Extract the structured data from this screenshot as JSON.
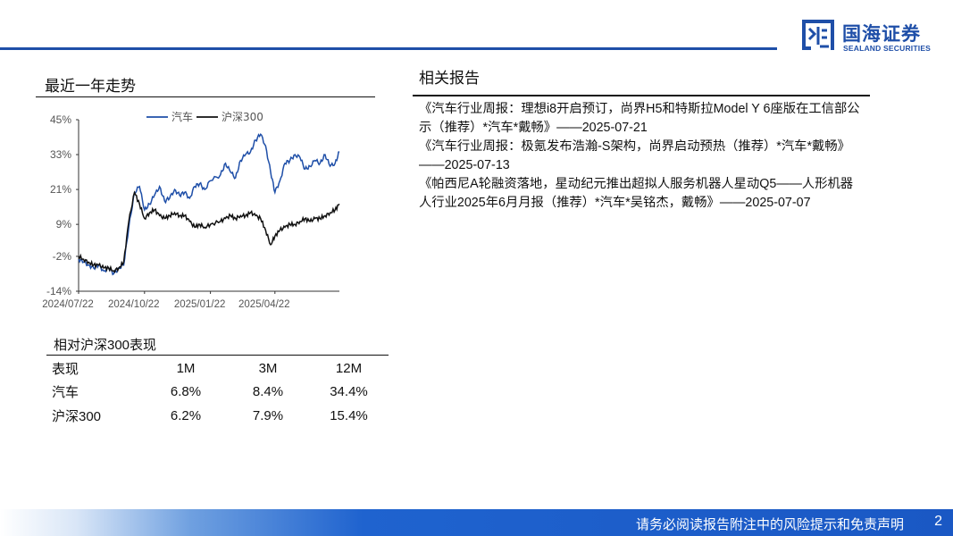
{
  "header": {
    "logo_cn": "国海证券",
    "logo_en": "SEALAND SECURITIES",
    "brand_color": "#1f4fa8",
    "logo_icon": "sealand-logo-icon"
  },
  "trend": {
    "title": "最近一年走势"
  },
  "chart_data": {
    "type": "line",
    "title": "",
    "xlabel": "",
    "ylabel": "",
    "ylim": [
      -14,
      45
    ],
    "yticks": [
      "45%",
      "33%",
      "21%",
      "9%",
      "-2%",
      "-14%"
    ],
    "ytick_values": [
      45,
      33,
      21,
      9,
      -2,
      -14
    ],
    "xticks": [
      "2024/07/22",
      "2024/10/22",
      "2025/01/22",
      "2025/04/22"
    ],
    "legend": [
      "汽车",
      "沪深300"
    ],
    "legend_position": "top",
    "grid": false,
    "series": [
      {
        "name": "汽车",
        "color": "#1f4fa8",
        "x": [
          "2024/07/22",
          "2024/07/29",
          "2024/08/05",
          "2024/08/12",
          "2024/08/19",
          "2024/08/26",
          "2024/09/02",
          "2024/09/09",
          "2024/09/16",
          "2024/09/23",
          "2024/09/30",
          "2024/10/08",
          "2024/10/15",
          "2024/10/22",
          "2024/10/29",
          "2024/11/05",
          "2024/11/12",
          "2024/11/19",
          "2024/11/26",
          "2024/12/03",
          "2024/12/10",
          "2024/12/17",
          "2024/12/24",
          "2024/12/31",
          "2025/01/07",
          "2025/01/14",
          "2025/01/22",
          "2025/02/05",
          "2025/02/12",
          "2025/02/19",
          "2025/02/26",
          "2025/03/05",
          "2025/03/12",
          "2025/03/19",
          "2025/03/26",
          "2025/04/02",
          "2025/04/09",
          "2025/04/16",
          "2025/04/22",
          "2025/04/29",
          "2025/05/06",
          "2025/05/13",
          "2025/05/20",
          "2025/05/27",
          "2025/06/03",
          "2025/06/10",
          "2025/06/17",
          "2025/06/24",
          "2025/07/01",
          "2025/07/08",
          "2025/07/15",
          "2025/07/21"
        ],
        "values": [
          -3,
          -4,
          -5,
          -6,
          -5,
          -7,
          -6,
          -8,
          -6,
          -5,
          8,
          20,
          22,
          14,
          16,
          19,
          22,
          17,
          18,
          21,
          19,
          20,
          18,
          22,
          23,
          21,
          24,
          26,
          30,
          27,
          25,
          31,
          33,
          34,
          38,
          40,
          36,
          27,
          20,
          24,
          30,
          31,
          33,
          32,
          28,
          29,
          31,
          30,
          33,
          29,
          30,
          34
        ]
      },
      {
        "name": "沪深300",
        "color": "#111111",
        "x": [
          "2024/07/22",
          "2024/07/29",
          "2024/08/05",
          "2024/08/12",
          "2024/08/19",
          "2024/08/26",
          "2024/09/02",
          "2024/09/09",
          "2024/09/16",
          "2024/09/23",
          "2024/09/30",
          "2024/10/08",
          "2024/10/15",
          "2024/10/22",
          "2024/10/29",
          "2024/11/05",
          "2024/11/12",
          "2024/11/19",
          "2024/11/26",
          "2024/12/03",
          "2024/12/10",
          "2024/12/17",
          "2024/12/24",
          "2024/12/31",
          "2025/01/07",
          "2025/01/14",
          "2025/01/22",
          "2025/02/05",
          "2025/02/12",
          "2025/02/19",
          "2025/02/26",
          "2025/03/05",
          "2025/03/12",
          "2025/03/19",
          "2025/03/26",
          "2025/04/02",
          "2025/04/09",
          "2025/04/16",
          "2025/04/22",
          "2025/04/29",
          "2025/05/06",
          "2025/05/13",
          "2025/05/20",
          "2025/05/27",
          "2025/06/03",
          "2025/06/10",
          "2025/06/17",
          "2025/06/24",
          "2025/07/01",
          "2025/07/08",
          "2025/07/15",
          "2025/07/21"
        ],
        "values": [
          -2,
          -3,
          -4,
          -5,
          -5,
          -6,
          -6,
          -7,
          -6,
          -4,
          10,
          20,
          16,
          11,
          13,
          14,
          12,
          11,
          12,
          13,
          12,
          12,
          10,
          8,
          9,
          8,
          9,
          10,
          11,
          12,
          11,
          12,
          12,
          13,
          12,
          11,
          7,
          2,
          5,
          7,
          8,
          9,
          9,
          10,
          11,
          10,
          11,
          11,
          12,
          13,
          14,
          16
        ]
      }
    ]
  },
  "perf_table": {
    "title": "相对沪深300表现",
    "header": [
      "表现",
      "1M",
      "3M",
      "12M"
    ],
    "rows": [
      [
        "汽车",
        "6.8%",
        "8.4%",
        "34.4%"
      ],
      [
        "沪深300",
        "6.2%",
        "7.9%",
        "15.4%"
      ]
    ]
  },
  "related": {
    "title": "相关报告",
    "items": [
      "《汽车行业周报：理想i8开启预订，尚界H5和特斯拉Model Y 6座版在工信部公示（推荐）*汽车*戴畅》——2025-07-21",
      "《汽车行业周报：极氪发布浩瀚-S架构，尚界启动预热（推荐）*汽车*戴畅》——2025-07-13",
      "《帕西尼A轮融资落地，星动纪元推出超拟人服务机器人星动Q5——人形机器人行业2025年6月月报（推荐）*汽车*吴铭杰，戴畅》——2025-07-07"
    ]
  },
  "footer": {
    "disclaimer": "请务必阅读报告附注中的风险提示和免责声明",
    "page": "2"
  }
}
